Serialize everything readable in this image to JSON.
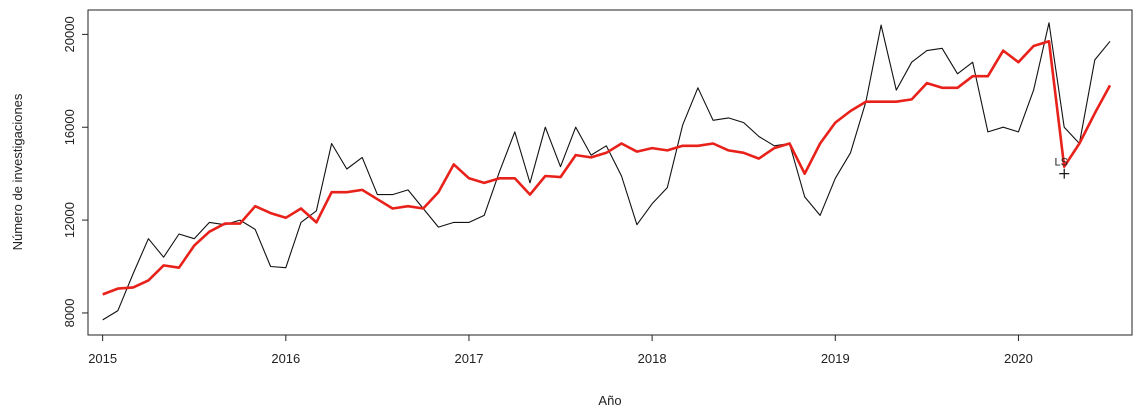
{
  "chart_data": {
    "type": "line",
    "xlabel": "Año",
    "ylabel": "Número de investigaciones",
    "xlim": [
      2014.92,
      2020.62
    ],
    "ylim": [
      7050,
      21050
    ],
    "xticks": [
      2015,
      2016,
      2017,
      2018,
      2019,
      2020
    ],
    "xtick_labels": [
      "2015",
      "2016",
      "2017",
      "2018",
      "2019",
      "2020"
    ],
    "yticks": [
      8000,
      12000,
      16000,
      20000
    ],
    "ytick_labels": [
      "8000",
      "12000",
      "16000",
      "20000"
    ],
    "grid": false,
    "series": [
      {
        "color": "#111111",
        "x": [
          2015.0,
          2015.083,
          2015.167,
          2015.25,
          2015.333,
          2015.417,
          2015.5,
          2015.583,
          2015.667,
          2015.75,
          2015.833,
          2015.917,
          2016.0,
          2016.083,
          2016.167,
          2016.25,
          2016.333,
          2016.417,
          2016.5,
          2016.583,
          2016.667,
          2016.75,
          2016.833,
          2016.917,
          2017.0,
          2017.083,
          2017.167,
          2017.25,
          2017.333,
          2017.417,
          2017.5,
          2017.583,
          2017.667,
          2017.75,
          2017.833,
          2017.917,
          2018.0,
          2018.083,
          2018.167,
          2018.25,
          2018.333,
          2018.417,
          2018.5,
          2018.583,
          2018.667,
          2018.75,
          2018.833,
          2018.917,
          2019.0,
          2019.083,
          2019.167,
          2019.25,
          2019.333,
          2019.417,
          2019.5,
          2019.583,
          2019.667,
          2019.75,
          2019.833,
          2019.917,
          2020.0,
          2020.083,
          2020.167,
          2020.25,
          2020.333,
          2020.417,
          2020.5
        ],
        "y": [
          7700,
          8100,
          9700,
          11200,
          10400,
          11400,
          11200,
          11900,
          11800,
          12000,
          11600,
          10000,
          9950,
          11900,
          12400,
          15300,
          14200,
          14700,
          13100,
          13100,
          13300,
          12500,
          11700,
          11900,
          11900,
          12200,
          14100,
          15800,
          13600,
          16000,
          14300,
          16000,
          14800,
          15200,
          13900,
          11800,
          12700,
          13400,
          16100,
          17700,
          16300,
          16400,
          16200,
          15600,
          15200,
          15300,
          13000,
          12200,
          13800,
          14900,
          17100,
          20400,
          17600,
          18800,
          19300,
          19400,
          18300,
          18800,
          15800,
          16000,
          15800,
          17600,
          20500,
          16000,
          15300,
          18900,
          19700
        ]
      },
      {
        "color": "#e8211a",
        "x": [
          2015.0,
          2015.083,
          2015.167,
          2015.25,
          2015.333,
          2015.417,
          2015.5,
          2015.583,
          2015.667,
          2015.75,
          2015.833,
          2015.917,
          2016.0,
          2016.083,
          2016.167,
          2016.25,
          2016.333,
          2016.417,
          2016.5,
          2016.583,
          2016.667,
          2016.75,
          2016.833,
          2016.917,
          2017.0,
          2017.083,
          2017.167,
          2017.25,
          2017.333,
          2017.417,
          2017.5,
          2017.583,
          2017.667,
          2017.75,
          2017.833,
          2017.917,
          2018.0,
          2018.083,
          2018.167,
          2018.25,
          2018.333,
          2018.417,
          2018.5,
          2018.583,
          2018.667,
          2018.75,
          2018.833,
          2018.917,
          2019.0,
          2019.083,
          2019.167,
          2019.25,
          2019.333,
          2019.417,
          2019.5,
          2019.583,
          2019.667,
          2019.75,
          2019.833,
          2019.917,
          2020.0,
          2020.083,
          2020.167,
          2020.25,
          2020.333,
          2020.417,
          2020.5
        ],
        "y": [
          8800,
          9050,
          9100,
          9400,
          10050,
          9950,
          10900,
          11500,
          11850,
          11850,
          12600,
          12300,
          12100,
          12500,
          11900,
          13200,
          13200,
          13300,
          12900,
          12500,
          12600,
          12500,
          13200,
          14400,
          13800,
          13600,
          13800,
          13800,
          13100,
          13900,
          13850,
          14800,
          14700,
          14900,
          15300,
          14950,
          15100,
          15000,
          15200,
          15200,
          15300,
          15000,
          14900,
          14650,
          15100,
          15300,
          14000,
          15300,
          16200,
          16700,
          17100,
          17100,
          17100,
          17200,
          17900,
          17700,
          17700,
          18200,
          18200,
          19300,
          18800,
          19500,
          19700,
          14300,
          15300,
          16600,
          17800
        ]
      }
    ],
    "annotations": [
      {
        "text": "LS",
        "x": 2020.25,
        "y": 14000,
        "marker": "plus"
      }
    ]
  }
}
